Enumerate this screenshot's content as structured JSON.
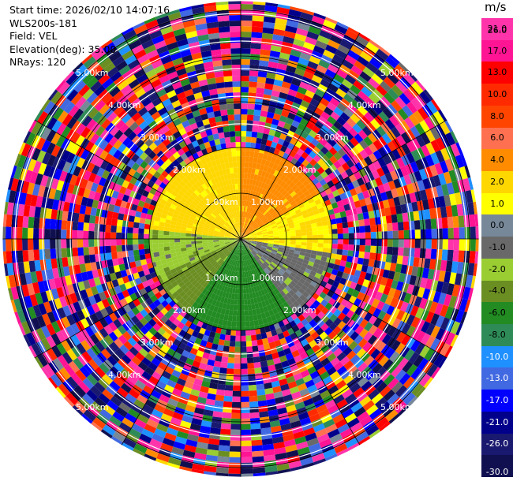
{
  "header": {
    "start_time": "Start time: 2026/02/10 14:07:16",
    "instrument": "WLS200s-181",
    "field": "Field: VEL",
    "elevation": "Elevation(deg): 35.00",
    "nrays": "NRays: 120"
  },
  "colorbar": {
    "unit": "m/s",
    "labels": [
      "26.0",
      "21.0",
      "17.0",
      "13.0",
      "10.0",
      "8.0",
      "6.0",
      "4.0",
      "2.0",
      "1.0",
      "0.0",
      "-1.0",
      "-2.0",
      "-4.0",
      "-6.0",
      "-8.0",
      "-10.0",
      "-13.0",
      "-17.0",
      "-21.0",
      "-26.0",
      "-30.0"
    ],
    "colors": [
      "#ff33aa",
      "#ff1493",
      "#ff0000",
      "#ff2a00",
      "#ff4500",
      "#ff7050",
      "#ff8c00",
      "#ffd700",
      "#ffff00",
      "#778899",
      "#696969",
      "#9acd32",
      "#6b8e23",
      "#228b22",
      "#2e8b57",
      "#1e90ff",
      "#4169e1",
      "#0000ff",
      "#00008b",
      "#191970",
      "#101050"
    ]
  },
  "chart_data": {
    "type": "ppi",
    "field": "VEL",
    "units": "m/s",
    "nrays": 120,
    "range_rings_km": [
      1.0,
      2.0,
      3.0,
      4.0,
      5.0
    ],
    "range_ring_labels": [
      "1.00km",
      "2.00km",
      "3.00km",
      "4.00km",
      "5.00km"
    ],
    "valid_data_radius_km": 2.0,
    "noise_region_radius_km": 5.2,
    "sectors": [
      {
        "azimuth_deg": [
          275,
          360
        ],
        "velocity_ms": 2.5,
        "note": "yellow"
      },
      {
        "azimuth_deg": [
          0,
          60
        ],
        "velocity_ms": 4.5,
        "note": "yellow/orange"
      },
      {
        "azimuth_deg": [
          60,
          100
        ],
        "velocity_ms": 2.0
      },
      {
        "azimuth_deg": [
          100,
          145
        ],
        "velocity_ms": -0.5
      },
      {
        "azimuth_deg": [
          145,
          215
        ],
        "velocity_ms": -5.0
      },
      {
        "azimuth_deg": [
          215,
          245
        ],
        "velocity_ms": -2.5
      },
      {
        "azimuth_deg": [
          245,
          275
        ],
        "velocity_ms": -1.5
      }
    ]
  }
}
